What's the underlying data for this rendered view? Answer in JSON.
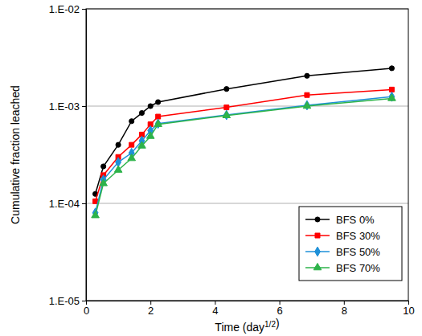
{
  "chart_data": {
    "type": "line",
    "x_label": "Time (day1/2)",
    "y_label": "Cumulative fraction leached",
    "x": [
      0.289,
      0.54,
      1.0,
      1.414,
      1.732,
      2.0,
      2.236,
      4.359,
      6.856,
      9.487
    ],
    "series": [
      {
        "name": "BFS 0%",
        "color": "#000000",
        "marker": "circle",
        "values": [
          0.000125,
          0.00024,
          0.0004,
          0.0007,
          0.00085,
          0.001,
          0.0011,
          0.0015,
          0.00205,
          0.00245
        ]
      },
      {
        "name": "BFS 30%",
        "color": "#ff0000",
        "marker": "square",
        "values": [
          0.000105,
          0.000195,
          0.0003,
          0.0004,
          0.00051,
          0.00065,
          0.00078,
          0.00097,
          0.0013,
          0.00148
        ]
      },
      {
        "name": "BFS 50%",
        "color": "#1e90d8",
        "marker": "diamond",
        "values": [
          8e-05,
          0.000175,
          0.000265,
          0.00033,
          0.00044,
          0.00056,
          0.00066,
          0.00081,
          0.00102,
          0.00125
        ]
      },
      {
        "name": "BFS 70%",
        "color": "#2db34a",
        "marker": "triangle",
        "values": [
          7.5e-05,
          0.00016,
          0.00022,
          0.00029,
          0.00039,
          0.00049,
          0.00065,
          0.0008,
          0.001,
          0.0012
        ]
      }
    ],
    "xlim": [
      0,
      10
    ],
    "xticks": [
      0,
      2,
      4,
      6,
      8,
      10
    ],
    "ylim": [
      1e-05,
      0.01
    ],
    "yticks": [
      {
        "value": 1e-05,
        "label": "1.E-05"
      },
      {
        "value": 0.0001,
        "label": "1.E-04"
      },
      {
        "value": 0.001,
        "label": "1.E-03"
      },
      {
        "value": 0.01,
        "label": "1.E-02"
      }
    ],
    "log": "y",
    "grid": true,
    "legend": "lower right"
  }
}
